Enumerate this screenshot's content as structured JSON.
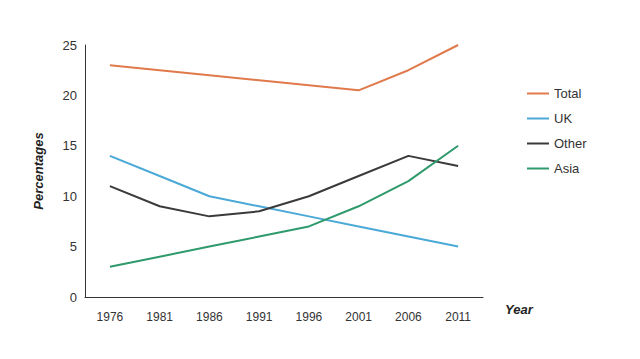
{
  "chart_data": {
    "type": "line",
    "x_label": "Year",
    "y_label": "Percentages",
    "categories": [
      "1976",
      "1981",
      "1986",
      "1991",
      "1996",
      "2001",
      "2006",
      "2011"
    ],
    "series": [
      {
        "name": "Total",
        "color": "#e07a4c",
        "values": [
          23,
          22.5,
          22,
          21.5,
          21,
          20.5,
          22.5,
          25
        ]
      },
      {
        "name": "UK",
        "color": "#4aa9d6",
        "values": [
          14,
          12,
          10,
          9,
          8,
          7,
          6,
          5
        ]
      },
      {
        "name": "Other",
        "color": "#3a3a3a",
        "values": [
          11,
          9,
          8,
          8.5,
          10,
          12,
          14,
          13
        ]
      },
      {
        "name": "Asia",
        "color": "#2f9a6c",
        "values": [
          3,
          4,
          5,
          6,
          7,
          9,
          11.5,
          15
        ]
      }
    ],
    "ylim": [
      0,
      25
    ],
    "yticks": [
      0,
      5,
      10,
      15,
      20,
      25
    ],
    "grid": false,
    "legend": "right"
  }
}
